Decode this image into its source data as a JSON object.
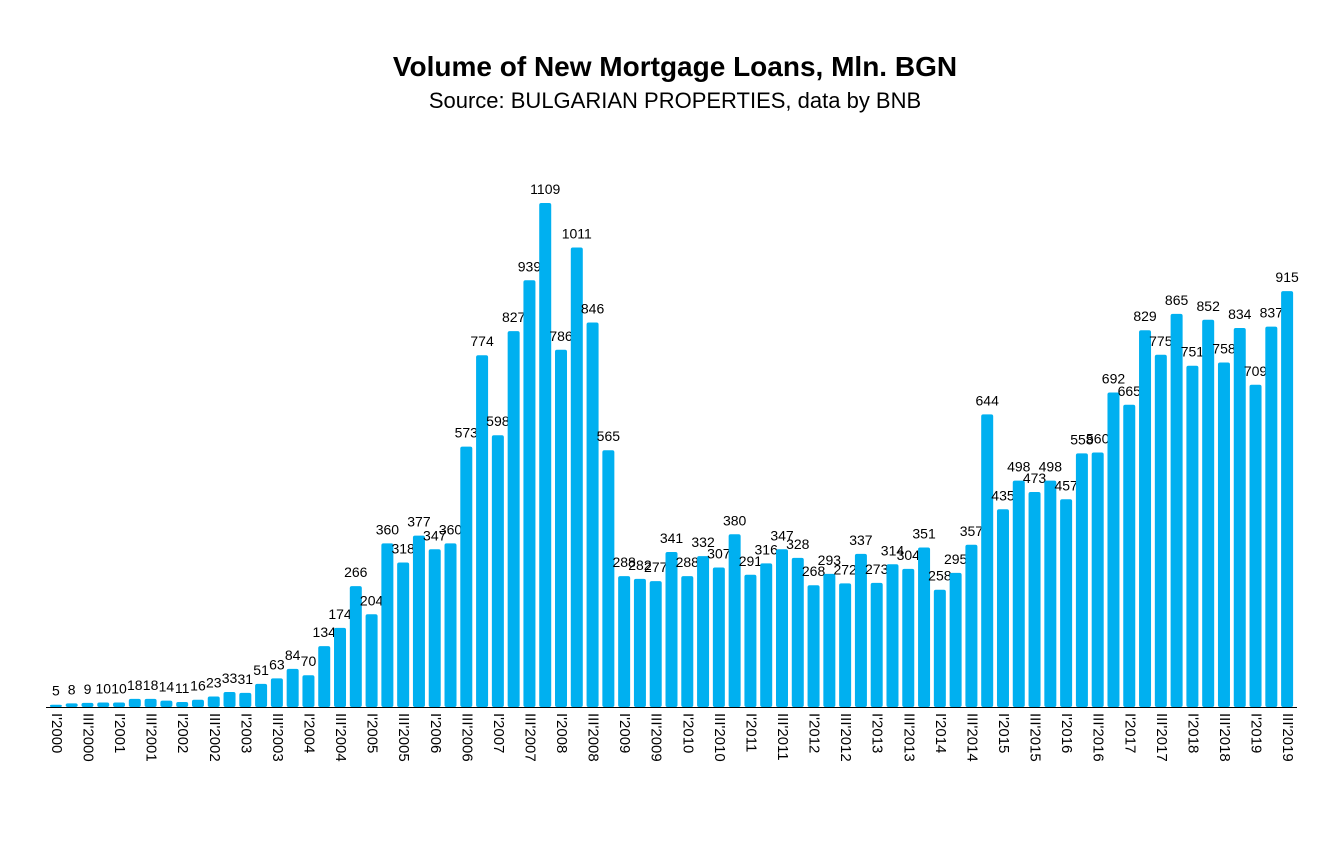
{
  "chart_data": {
    "type": "bar",
    "title": "Volume of New Mortgage Loans, Mln. BGN",
    "subtitle": "Source: BULGARIAN PROPERTIES, data by BNB",
    "color": "#00b0f0",
    "categories": [
      "I'2000",
      null,
      "III'2000",
      null,
      "I'2001",
      null,
      "III'2001",
      null,
      "I'2002",
      null,
      "III'2002",
      null,
      "I'2003",
      null,
      "III'2003",
      null,
      "I'2004",
      null,
      "III'2004",
      null,
      "I'2005",
      null,
      "III'2005",
      null,
      "I'2006",
      null,
      "III'2006",
      null,
      "I'2007",
      null,
      "III'2007",
      null,
      "I'2008",
      null,
      "III'2008",
      null,
      "I'2009",
      null,
      "III'2009",
      null,
      "I'2010",
      null,
      "III'2010",
      null,
      "I'2011",
      null,
      "III'2011",
      null,
      "I'2012",
      null,
      "III'2012",
      null,
      "I'2013",
      null,
      "III'2013",
      null,
      "I'2014",
      null,
      "III'2014",
      null,
      "I'2015",
      null,
      "III'2015",
      null,
      "I'2016",
      null,
      "III'2016",
      null,
      "I'2017",
      null,
      "III'2017",
      null,
      "I'2018",
      null,
      "III'2018",
      null,
      "I'2019",
      null,
      "III'2019"
    ],
    "values": [
      5,
      8,
      9,
      10,
      10,
      18,
      18,
      14,
      11,
      16,
      23,
      33,
      31,
      51,
      63,
      84,
      70,
      134,
      174,
      266,
      204,
      360,
      318,
      377,
      347,
      360,
      573,
      774,
      598,
      827,
      939,
      1109,
      786,
      1011,
      846,
      565,
      288,
      282,
      277,
      341,
      288,
      332,
      307,
      380,
      291,
      316,
      347,
      328,
      268,
      293,
      272,
      337,
      273,
      314,
      304,
      351,
      258,
      295,
      357,
      644,
      435,
      498,
      473,
      498,
      457,
      558,
      560,
      692,
      665,
      829,
      775,
      865,
      751,
      852,
      758,
      834,
      709,
      837,
      915
    ]
  }
}
